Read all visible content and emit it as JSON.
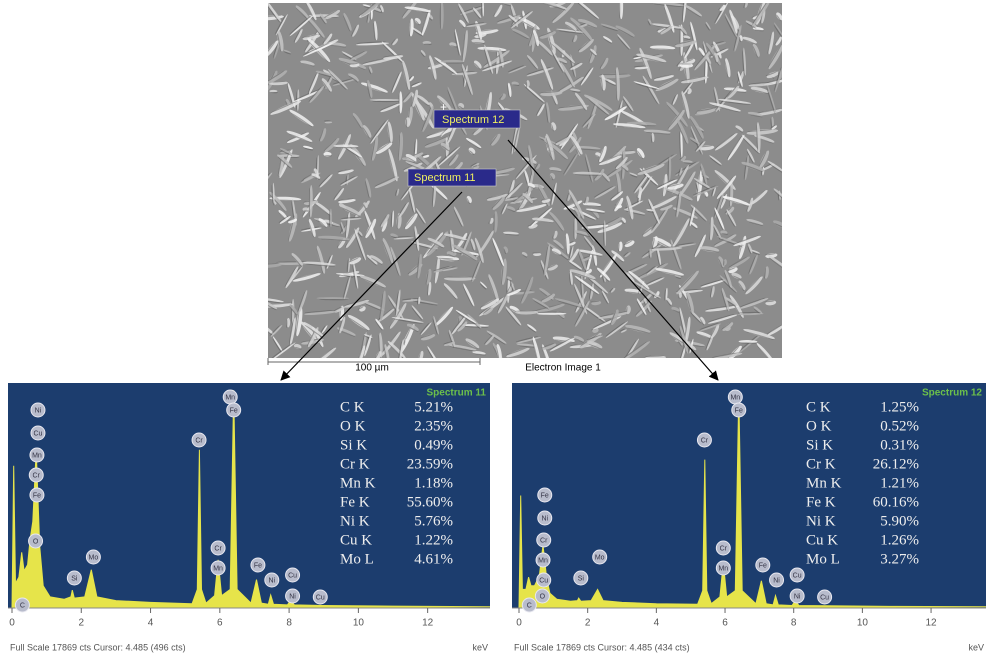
{
  "image": {
    "markers": [
      "Spectrum 12",
      "Spectrum 11"
    ],
    "scale_bar": "100 µm",
    "caption": "Electron Image 1"
  },
  "chart_data": [
    {
      "type": "area",
      "title": "Spectrum 11",
      "color": "#e6e44a",
      "x": [
        0,
        0.05,
        0.1,
        0.2,
        0.28,
        0.35,
        0.45,
        0.52,
        0.6,
        0.7,
        0.8,
        0.9,
        1.1,
        1.5,
        1.7,
        1.74,
        1.8,
        2.1,
        2.29,
        2.45,
        3,
        4,
        5.2,
        5.35,
        5.41,
        5.47,
        5.6,
        5.85,
        5.95,
        6.05,
        6.3,
        6.4,
        6.5,
        6.9,
        7.06,
        7.2,
        7.4,
        7.47,
        7.55,
        7.95,
        8.05,
        8.15,
        9,
        11,
        13.8
      ],
      "values": [
        0,
        11500,
        2000,
        2500,
        4500,
        3000,
        3500,
        5500,
        7000,
        12800,
        5000,
        1800,
        900,
        700,
        900,
        1450,
        800,
        900,
        3100,
        900,
        600,
        450,
        350,
        1500,
        12800,
        1500,
        400,
        1000,
        3900,
        1000,
        1500,
        17600,
        1500,
        400,
        2300,
        400,
        300,
        1050,
        300,
        250,
        650,
        250,
        200,
        150,
        100
      ],
      "xlim": [
        0,
        13.8
      ],
      "xticks": [
        0,
        2,
        4,
        6,
        8,
        10,
        12
      ],
      "ylim": [
        0,
        17869
      ],
      "x_label": "keV",
      "footer": "Full Scale 17869 cts Cursor: 4.485  (496 cts)",
      "composition": [
        [
          "C K",
          "5.21%"
        ],
        [
          "O K",
          "2.35%"
        ],
        [
          "Si K",
          "0.49%"
        ],
        [
          "Cr K",
          "23.59%"
        ],
        [
          "Mn K",
          "1.18%"
        ],
        [
          "Fe K",
          "55.60%"
        ],
        [
          "Ni K",
          "5.76%"
        ],
        [
          "Cu K",
          "1.22%"
        ],
        [
          "Mo L",
          "4.61%"
        ]
      ],
      "peak_labels": [
        "Ni",
        "Cu",
        "Mn",
        "Cr",
        "Fe",
        "O",
        "C",
        "Si",
        "Mo",
        "Cr",
        "Mn",
        "Fe",
        "Cr",
        "Mn",
        "Fe",
        "Ni",
        "Cu",
        "Ni",
        "Cu"
      ]
    },
    {
      "type": "area",
      "title": "Spectrum 12",
      "color": "#e6e44a",
      "x": [
        0,
        0.05,
        0.1,
        0.2,
        0.28,
        0.35,
        0.45,
        0.52,
        0.6,
        0.7,
        0.8,
        0.9,
        1.1,
        1.5,
        1.7,
        1.74,
        1.8,
        2.1,
        2.29,
        2.45,
        3,
        4,
        5.2,
        5.35,
        5.41,
        5.47,
        5.6,
        5.85,
        5.95,
        6.05,
        6.3,
        6.4,
        6.5,
        6.9,
        7.06,
        7.2,
        7.4,
        7.47,
        7.55,
        7.95,
        8.05,
        8.15,
        9,
        11,
        13.6
      ],
      "values": [
        0,
        9100,
        1500,
        1500,
        2500,
        1800,
        1800,
        2200,
        2800,
        5100,
        2500,
        1200,
        700,
        550,
        600,
        800,
        550,
        600,
        1500,
        600,
        450,
        350,
        300,
        1400,
        12000,
        1400,
        350,
        900,
        3700,
        900,
        1400,
        17500,
        1400,
        350,
        2200,
        350,
        250,
        1000,
        250,
        200,
        600,
        200,
        180,
        130,
        100
      ],
      "xlim": [
        0,
        13.6
      ],
      "xticks": [
        0,
        2,
        4,
        6,
        8,
        10,
        12
      ],
      "ylim": [
        0,
        17869
      ],
      "x_label": "keV",
      "footer": "Full Scale 17869 cts Cursor: 4.485  (434 cts)",
      "composition": [
        [
          "C K",
          "1.25%"
        ],
        [
          "O K",
          "0.52%"
        ],
        [
          "Si K",
          "0.31%"
        ],
        [
          "Cr K",
          "26.12%"
        ],
        [
          "Mn K",
          "1.21%"
        ],
        [
          "Fe K",
          "60.16%"
        ],
        [
          "Ni K",
          "5.90%"
        ],
        [
          "Cu K",
          "1.26%"
        ],
        [
          "Mo L",
          "3.27%"
        ]
      ],
      "peak_labels": [
        "Fe",
        "Ni",
        "Cr",
        "Mn",
        "Cu",
        "O",
        "C",
        "Si",
        "Mo",
        "Cr",
        "Mn",
        "Fe",
        "Cr",
        "Mn",
        "Fe",
        "Ni",
        "Cu",
        "Ni",
        "Cu"
      ]
    }
  ]
}
